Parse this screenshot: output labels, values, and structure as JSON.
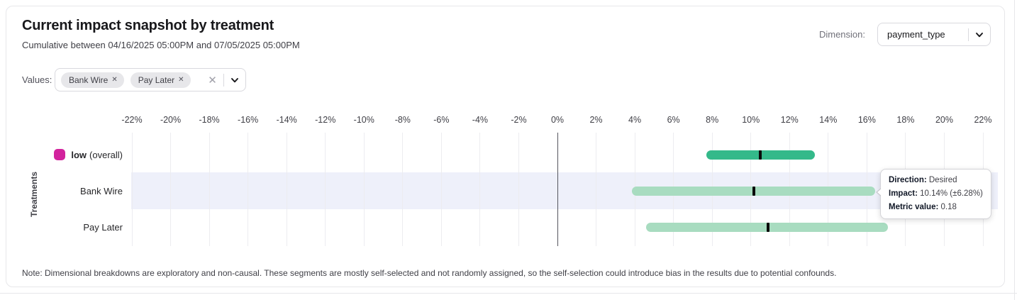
{
  "card": {
    "title": "Current impact snapshot by treatment",
    "subtitle": "Cumulative between 04/16/2025 05:00PM and 07/05/2025 05:00PM",
    "dimension": {
      "label": "Dimension:",
      "selected": "payment_type"
    },
    "values_filter": {
      "label": "Values:",
      "chips": [
        {
          "text": "Bank Wire",
          "remove_icon": "✕"
        },
        {
          "text": "Pay Later",
          "remove_icon": "✕"
        }
      ],
      "clear_icon": "✕"
    },
    "note": "Note: Dimensional breakdowns are exploratory and non-causal. These segments are mostly self-selected and not randomly assigned, so the self-selection could introduce bias in the results due to potential confounds."
  },
  "tooltip": {
    "lines": [
      {
        "label": "Direction:",
        "value": "Desired"
      },
      {
        "label": "Impact:",
        "value": "10.14% (±6.28%)"
      },
      {
        "label": "Metric value:",
        "value": "0.18"
      }
    ]
  },
  "chart_data": {
    "type": "range_bar",
    "ylabel": "Treatments",
    "axis": {
      "min": -22,
      "max": 22,
      "step": 2,
      "unit": "%"
    },
    "tick_labels": [
      "-22%",
      "-20%",
      "-18%",
      "-16%",
      "-14%",
      "-12%",
      "-10%",
      "-8%",
      "-6%",
      "-4%",
      "-2%",
      "0%",
      "2%",
      "4%",
      "6%",
      "8%",
      "10%",
      "12%",
      "14%",
      "16%",
      "18%",
      "20%",
      "22%"
    ],
    "grid": true,
    "zero_line": true,
    "marker_color": "#0a0a0a",
    "highlight_color": "#eef0fa",
    "rows": [
      {
        "label": "low",
        "label_suffix": "(overall)",
        "label_bold": true,
        "swatch_color": "#d2239d",
        "bar_color": "#34b98a",
        "low": 7.7,
        "high": 13.3,
        "center": 10.5,
        "highlighted": false
      },
      {
        "label": "Bank Wire",
        "label_bold": false,
        "bar_color": "#a8dcc0",
        "low": 3.86,
        "high": 16.42,
        "center": 10.14,
        "highlighted": true
      },
      {
        "label": "Pay Later",
        "label_bold": false,
        "bar_color": "#a8dcc0",
        "low": 4.6,
        "high": 17.1,
        "center": 10.9,
        "highlighted": false
      }
    ]
  }
}
